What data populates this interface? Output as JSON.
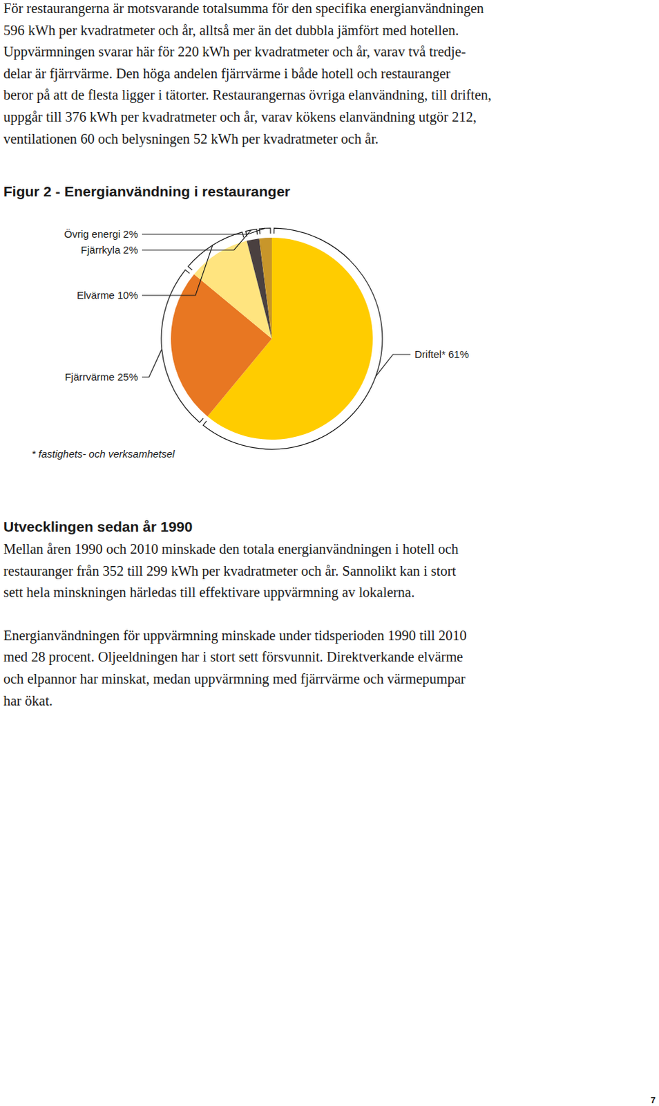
{
  "document": {
    "paragraphs": [
      [
        "För restaurangerna är motsvarande totalsumma för den specifika energianvändningen",
        "596 kWh per kvadratmeter och år, alltså mer än det dubbla jämfört med hotellen.",
        "Uppvärmningen svarar här för 220 kWh per kvadratmeter och år, varav två tredje-",
        "delar är fjärrvärme. Den höga andelen fjärrvärme i både hotell och restauranger",
        "beror på att de flesta ligger i tätorter. Restaurangernas övriga elanvändning, till driften,",
        "uppgår till 376 kWh per kvadratmeter och år, varav kökens elanvändning utgör 212,",
        "ventilationen 60 och belysningen 52 kWh per kvadratmeter och år."
      ]
    ],
    "section_heading": "Utvecklingen sedan år 1990",
    "section_paragraphs": [
      [
        "Mellan åren 1990 och 2010 minskade den totala energianvändningen i hotell och",
        "restauranger från 352 till 299 kWh per kvadratmeter och år. Sannolikt kan i stort",
        "sett hela minskningen härledas till effektivare uppvärmning av lokalerna."
      ],
      [
        "Energianvändningen för uppvärmning minskade under tidsperioden 1990 till 2010",
        "med 28 procent. Oljeeldningen har i stort sett försvunnit. Direktverkande elvärme",
        "och elpannor har minskat, medan uppvärmning med fjärrvärme och värmepumpar",
        "har ökat."
      ]
    ],
    "page_number": 7
  },
  "chart_data": {
    "type": "pie",
    "title": "Figur 2 - Energianvändning i restauranger",
    "categories": [
      "Driftel*",
      "Fjärrvärme",
      "Elvärme",
      "Fjärrkyla",
      "Övrig energi"
    ],
    "values": [
      61,
      25,
      10,
      2,
      2
    ],
    "value_labels": [
      "61%",
      "25%",
      "10%",
      "2%",
      "2%"
    ],
    "colors": [
      "#ffcc00",
      "#e87722",
      "#ffe47f",
      "#4a4040",
      "#c8962a"
    ],
    "footnote": "* fastighets- och verksamhetsel"
  }
}
